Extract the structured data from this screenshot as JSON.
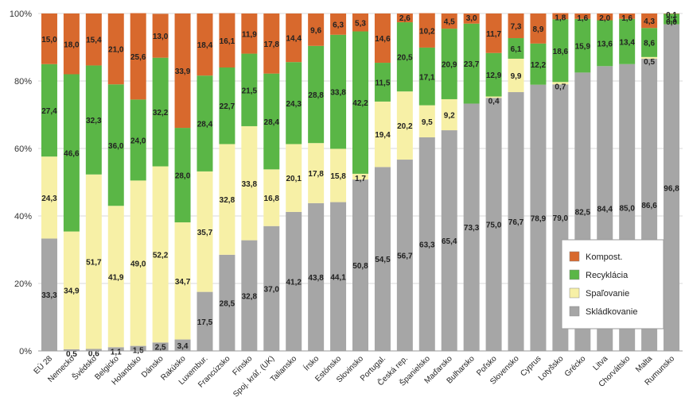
{
  "chart_data": {
    "type": "bar",
    "stacked": true,
    "title": "",
    "xlabel": "",
    "ylabel": "",
    "ylim": [
      0,
      100
    ],
    "y_ticks": [
      "0%",
      "20%",
      "40%",
      "60%",
      "80%",
      "100%"
    ],
    "grid": true,
    "legend_position": "right",
    "categories": [
      "EÚ 28",
      "Nemecko",
      "Švédsko",
      "Belgicko",
      "Holandsko",
      "Dánsko",
      "Rakúsko",
      "Luxembur.",
      "Francúzsko",
      "Fínsko",
      "Spoj. kráľ. (UK)",
      "Taliansko",
      "Írsko",
      "Estónsko",
      "Slovinsko",
      "Portugal.",
      "Česká rep.",
      "Španielsko",
      "Maďarsko",
      "Bulharsko",
      "Poľsko",
      "Slovensko",
      "Cyprus",
      "Lotyšsko",
      "Grécko",
      "Litva",
      "Chorvátsko",
      "Malta",
      "Rumunsko"
    ],
    "series": [
      {
        "name": "Skládkovanie",
        "color": "#a6a6a6",
        "values": [
          33.3,
          0.5,
          0.6,
          1.1,
          1.5,
          2.5,
          3.4,
          17.5,
          28.5,
          32.8,
          37.0,
          41.2,
          43.8,
          44.1,
          50.8,
          54.5,
          56.7,
          63.3,
          65.4,
          73.3,
          75.0,
          76.7,
          78.9,
          79.0,
          82.5,
          84.4,
          85.0,
          86.6,
          96.8
        ]
      },
      {
        "name": "Spaľovanie",
        "color": "#f7f0a6",
        "values": [
          24.3,
          34.9,
          51.7,
          41.9,
          49.0,
          52.2,
          34.7,
          35.7,
          32.8,
          33.8,
          16.8,
          20.1,
          17.8,
          15.8,
          1.7,
          19.4,
          20.2,
          9.5,
          9.2,
          0.0,
          0.4,
          9.9,
          0.0,
          0.7,
          0.0,
          0.0,
          0.0,
          0.5,
          0.0
        ]
      },
      {
        "name": "Recyklácia",
        "color": "#5ab646",
        "values": [
          27.4,
          46.6,
          32.3,
          36.0,
          24.0,
          32.2,
          28.0,
          28.4,
          22.7,
          21.5,
          28.4,
          24.3,
          28.8,
          33.8,
          42.2,
          11.5,
          20.5,
          17.1,
          20.9,
          23.7,
          12.9,
          6.1,
          12.2,
          18.6,
          15.9,
          13.6,
          13.4,
          8.6,
          3.1
        ]
      },
      {
        "name": "Kompost.",
        "color": "#d8692d",
        "values": [
          15.0,
          18.0,
          15.4,
          21.0,
          25.6,
          13.0,
          33.9,
          18.4,
          16.1,
          11.9,
          17.8,
          14.4,
          9.6,
          6.3,
          5.3,
          14.6,
          2.6,
          10.2,
          4.5,
          3.0,
          11.7,
          7.3,
          8.9,
          1.8,
          1.6,
          2.0,
          1.6,
          4.3,
          0.1
        ]
      }
    ],
    "data_labels": [
      {
        "category_index": 28,
        "series_index": 1,
        "text": "0,0"
      },
      {
        "category_index": 28,
        "series_index": 3,
        "text": "0,1"
      }
    ]
  },
  "legend": {
    "items": [
      {
        "label": "Kompost.",
        "color": "#d8692d"
      },
      {
        "label": "Recyklácia",
        "color": "#5ab646"
      },
      {
        "label": "Spaľovanie",
        "color": "#f7f0a6"
      },
      {
        "label": "Skládkovanie",
        "color": "#a6a6a6"
      }
    ]
  }
}
